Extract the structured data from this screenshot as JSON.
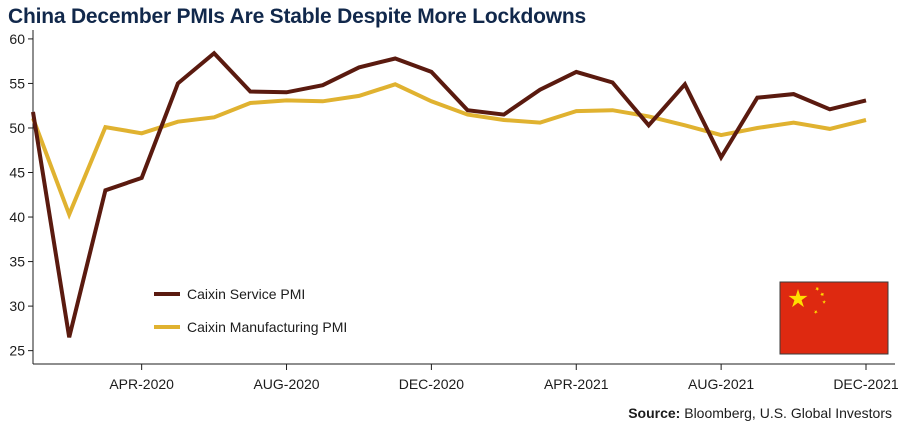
{
  "title": "China December PMIs Are Stable Despite More Lockdowns",
  "source": {
    "label": "Source:",
    "text": " Bloomberg, U.S. Global Investors"
  },
  "chart_data": {
    "type": "line",
    "title": "China December PMIs Are Stable Despite More Lockdowns",
    "xlabel": "",
    "ylabel": "",
    "x": [
      "JAN-2020",
      "FEB-2020",
      "MAR-2020",
      "APR-2020",
      "MAY-2020",
      "JUN-2020",
      "JUL-2020",
      "AUG-2020",
      "SEP-2020",
      "OCT-2020",
      "NOV-2020",
      "DEC-2020",
      "JAN-2021",
      "FEB-2021",
      "MAR-2021",
      "APR-2021",
      "MAY-2021",
      "JUN-2021",
      "JUL-2021",
      "AUG-2021",
      "SEP-2021",
      "OCT-2021",
      "NOV-2021",
      "DEC-2021"
    ],
    "x_tick_labels": [
      "APR-2020",
      "AUG-2020",
      "DEC-2020",
      "APR-2021",
      "AUG-2021",
      "DEC-2021"
    ],
    "x_tick_indices": [
      3,
      7,
      11,
      15,
      19,
      23
    ],
    "yticks": [
      25,
      30,
      35,
      40,
      45,
      50,
      55,
      60
    ],
    "ylim": [
      23.5,
      61
    ],
    "grid": false,
    "legend_position": "bottom-left",
    "series": [
      {
        "name": "Caixin Service PMI",
        "color": "#5a1a0f",
        "values": [
          51.8,
          26.5,
          43.0,
          44.4,
          55.0,
          58.4,
          54.1,
          54.0,
          54.8,
          56.8,
          57.8,
          56.3,
          52.0,
          51.5,
          54.3,
          56.3,
          55.1,
          50.3,
          54.9,
          46.7,
          53.4,
          53.8,
          52.1,
          53.1
        ]
      },
      {
        "name": "Caixin Manufacturing PMI",
        "color": "#e0b230",
        "values": [
          51.1,
          40.3,
          50.1,
          49.4,
          50.7,
          51.2,
          52.8,
          53.1,
          53.0,
          53.6,
          54.9,
          53.0,
          51.5,
          50.9,
          50.6,
          51.9,
          52.0,
          51.3,
          50.3,
          49.2,
          50.0,
          50.6,
          49.9,
          50.9
        ]
      }
    ]
  },
  "flag": {
    "name": "china-flag",
    "field_color": "#de2910",
    "star_color": "#ffde00"
  }
}
